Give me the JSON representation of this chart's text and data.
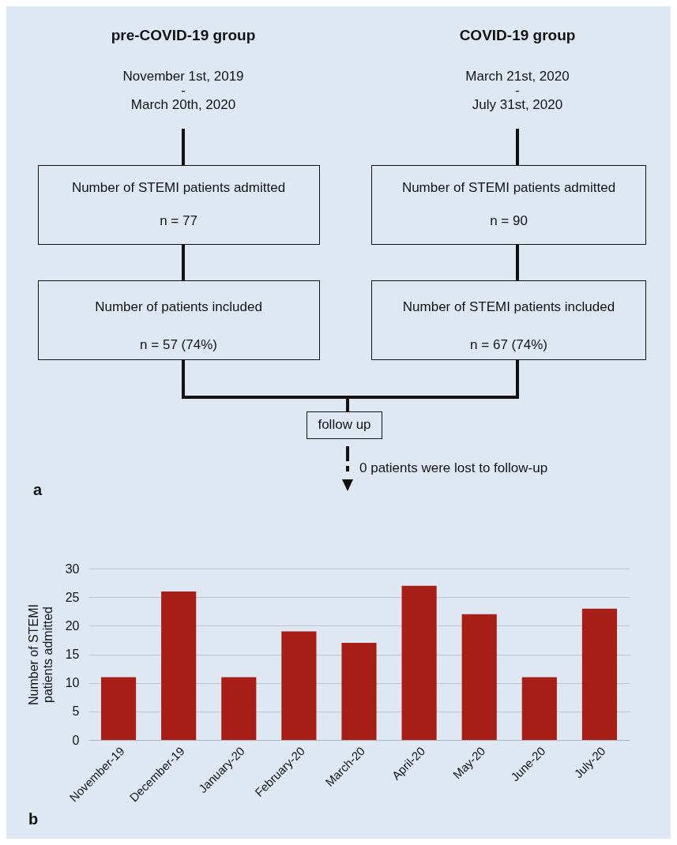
{
  "chart_data": [
    {
      "type": "other",
      "annotations": [
        "pre-COVID-19 group",
        "COVID-19 group",
        "November 1st, 2019",
        "-",
        "March 20th, 2020",
        "March 21st, 2020",
        "-",
        "July 31st, 2020",
        "Number of STEMI patients admitted",
        "n = 77",
        "Number of STEMI patients admitted",
        "n = 90",
        "Number of patients included",
        "n = 57 (74%)",
        "Number of STEMI patients included",
        "n = 67 (74%)",
        "follow up",
        "0 patients were lost to follow-up",
        "a"
      ]
    },
    {
      "type": "bar",
      "ylabel": "Number of STEMI patients admitted",
      "categories": [
        "November-19",
        "December-19",
        "January-20",
        "February-20",
        "March-20",
        "April-20",
        "May-20",
        "June-20",
        "July-20"
      ],
      "values": [
        11,
        26,
        11,
        19,
        17,
        27,
        22,
        11,
        23
      ],
      "color": "#a61e16",
      "ylim": [
        0,
        30
      ],
      "yticks": [
        0,
        5,
        10,
        15,
        20,
        25,
        30
      ],
      "grid": "y",
      "annotations": [
        "b"
      ]
    }
  ]
}
